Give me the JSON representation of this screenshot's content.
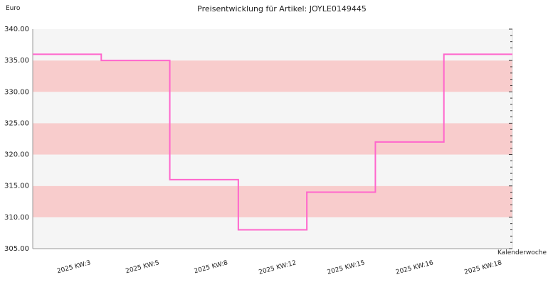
{
  "chart_data": {
    "type": "line",
    "step": true,
    "title": "Preisentwicklung für Artikel: JOYLE0149445",
    "ylabel": "Euro",
    "xlabel": "Kalenderwoche",
    "ylim": [
      305,
      340
    ],
    "yticks": [
      "305.00",
      "310.00",
      "315.00",
      "320.00",
      "325.00",
      "330.00",
      "335.00",
      "340.00"
    ],
    "ytick_values": [
      305,
      310,
      315,
      320,
      325,
      330,
      335,
      340
    ],
    "categories": [
      "2025 KW:3",
      "2025 KW:5",
      "2025 KW:8",
      "2025 KW:12",
      "2025 KW:15",
      "2025 KW:16",
      "2025 KW:18"
    ],
    "series": [
      {
        "values": [
          336,
          335,
          316,
          308,
          314,
          322,
          336
        ]
      }
    ],
    "colors": {
      "line": "#ff66cc",
      "band_light": "#f5f5f5",
      "band_dark": "#f8cccc",
      "axis": "#999999",
      "text": "#222222"
    },
    "grid": false,
    "legend": "none"
  }
}
